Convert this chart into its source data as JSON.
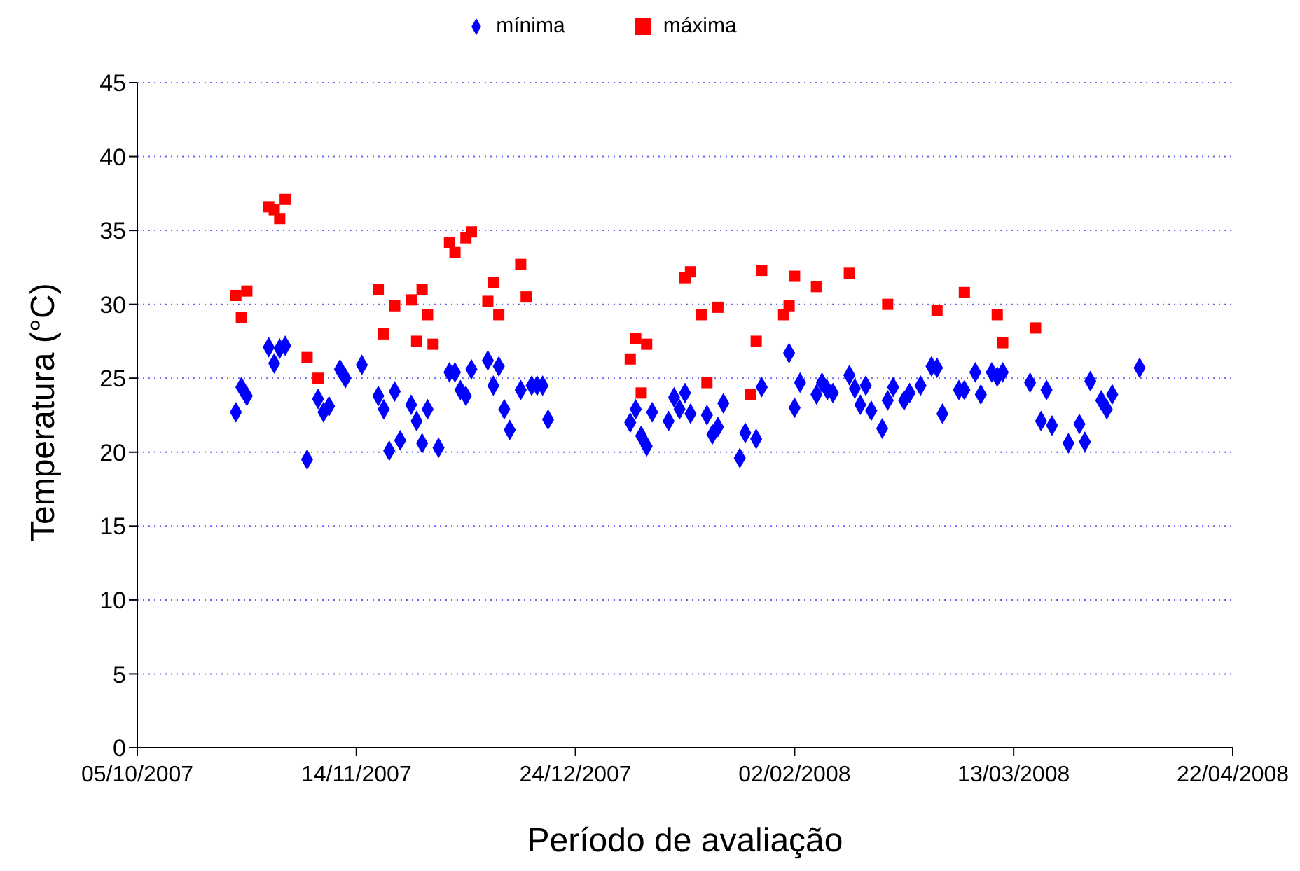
{
  "chart_data": {
    "type": "scatter",
    "xlabel": "Período de avaliação",
    "ylabel": "Temperatura (°C)",
    "xlim": [
      "2007-10-05",
      "2008-04-22"
    ],
    "xticks": [
      {
        "value": "2007-10-05",
        "label": "05/10/2007"
      },
      {
        "value": "2007-11-14",
        "label": "14/11/2007"
      },
      {
        "value": "2007-12-24",
        "label": "24/12/2007"
      },
      {
        "value": "2008-02-02",
        "label": "02/02/2008"
      },
      {
        "value": "2008-03-13",
        "label": "13/03/2008"
      },
      {
        "value": "2008-04-22",
        "label": "22/04/2008"
      }
    ],
    "ylim": [
      0,
      45
    ],
    "yticks": [
      0,
      5,
      10,
      15,
      20,
      25,
      30,
      35,
      40,
      45
    ],
    "grid": "y",
    "legend": "top",
    "series": [
      {
        "name": "mínima",
        "color": "#0000ff",
        "marker": "diamond",
        "x": [
          "2007-10-23",
          "2007-10-24",
          "2007-10-25",
          "2007-10-29",
          "2007-10-30",
          "2007-10-31",
          "2007-11-01",
          "2007-11-05",
          "2007-11-07",
          "2007-11-08",
          "2007-11-09",
          "2007-11-11",
          "2007-11-12",
          "2007-11-15",
          "2007-11-18",
          "2007-11-19",
          "2007-11-20",
          "2007-11-21",
          "2007-11-22",
          "2007-11-24",
          "2007-11-25",
          "2007-11-26",
          "2007-11-27",
          "2007-11-29",
          "2007-12-01",
          "2007-12-02",
          "2007-12-03",
          "2007-12-04",
          "2007-12-05",
          "2007-12-08",
          "2007-12-09",
          "2007-12-10",
          "2007-12-11",
          "2007-12-12",
          "2007-12-14",
          "2007-12-16",
          "2007-12-17",
          "2007-12-18",
          "2007-12-19",
          "2008-01-03",
          "2008-01-04",
          "2008-01-05",
          "2008-01-06",
          "2008-01-07",
          "2008-01-10",
          "2008-01-11",
          "2008-01-12",
          "2008-01-13",
          "2008-01-14",
          "2008-01-17",
          "2008-01-18",
          "2008-01-19",
          "2008-01-20",
          "2008-01-23",
          "2008-01-24",
          "2008-01-26",
          "2008-01-27",
          "2008-02-01",
          "2008-02-02",
          "2008-02-03",
          "2008-02-06",
          "2008-02-07",
          "2008-02-08",
          "2008-02-09",
          "2008-02-12",
          "2008-02-13",
          "2008-02-14",
          "2008-02-15",
          "2008-02-16",
          "2008-02-18",
          "2008-02-19",
          "2008-02-20",
          "2008-02-22",
          "2008-02-23",
          "2008-02-25",
          "2008-02-27",
          "2008-02-28",
          "2008-02-29",
          "2008-03-03",
          "2008-03-04",
          "2008-03-06",
          "2008-03-07",
          "2008-03-09",
          "2008-03-10",
          "2008-03-11",
          "2008-03-16",
          "2008-03-18",
          "2008-03-19",
          "2008-03-20",
          "2008-03-23",
          "2008-03-25",
          "2008-03-26",
          "2008-03-27",
          "2008-03-29",
          "2008-03-30",
          "2008-03-31",
          "2008-04-05"
        ],
        "values": [
          22.7,
          24.4,
          23.8,
          27.1,
          26.0,
          27.0,
          27.2,
          19.5,
          23.6,
          22.7,
          23.1,
          25.6,
          25.0,
          25.9,
          23.8,
          22.9,
          20.1,
          24.1,
          20.8,
          23.2,
          22.1,
          20.6,
          22.9,
          20.3,
          25.4,
          25.4,
          24.2,
          23.8,
          25.6,
          26.2,
          24.5,
          25.8,
          22.9,
          21.5,
          24.2,
          24.5,
          24.5,
          24.5,
          22.2,
          22.0,
          22.9,
          21.1,
          20.4,
          22.7,
          22.1,
          23.7,
          22.9,
          24.0,
          22.6,
          22.5,
          21.2,
          21.7,
          23.3,
          19.6,
          21.3,
          20.9,
          24.4,
          26.7,
          23.0,
          24.7,
          23.9,
          24.7,
          24.2,
          24.0,
          25.2,
          24.3,
          23.2,
          24.5,
          22.8,
          21.6,
          23.5,
          24.4,
          23.5,
          24.0,
          24.5,
          25.8,
          25.7,
          22.6,
          24.2,
          24.2,
          25.4,
          23.9,
          25.4,
          25.1,
          25.4,
          24.7,
          22.1,
          24.2,
          21.8,
          20.6,
          21.9,
          20.7,
          24.8,
          23.5,
          22.9,
          23.9,
          25.7
        ]
      },
      {
        "name": "máxima",
        "color": "#ff0000",
        "marker": "square",
        "x": [
          "2007-10-23",
          "2007-10-24",
          "2007-10-25",
          "2007-10-29",
          "2007-10-30",
          "2007-10-31",
          "2007-11-01",
          "2007-11-05",
          "2007-11-07",
          "2007-11-18",
          "2007-11-19",
          "2007-11-21",
          "2007-11-24",
          "2007-11-25",
          "2007-11-26",
          "2007-11-27",
          "2007-11-28",
          "2007-12-01",
          "2007-12-02",
          "2007-12-04",
          "2007-12-05",
          "2007-12-08",
          "2007-12-09",
          "2007-12-10",
          "2007-12-14",
          "2007-12-15",
          "2008-01-03",
          "2008-01-04",
          "2008-01-05",
          "2008-01-06",
          "2008-01-13",
          "2008-01-14",
          "2008-01-16",
          "2008-01-17",
          "2008-01-19",
          "2008-01-25",
          "2008-01-26",
          "2008-01-27",
          "2008-01-31",
          "2008-02-01",
          "2008-02-02",
          "2008-02-06",
          "2008-02-12",
          "2008-02-19",
          "2008-02-28",
          "2008-03-04",
          "2008-03-10",
          "2008-03-11",
          "2008-03-17"
        ],
        "values": [
          30.6,
          29.1,
          30.9,
          36.6,
          36.4,
          35.8,
          37.1,
          26.4,
          25.0,
          31.0,
          28.0,
          29.9,
          30.3,
          27.5,
          31.0,
          29.3,
          27.3,
          34.2,
          33.5,
          34.5,
          34.9,
          30.2,
          31.5,
          29.3,
          32.7,
          30.5,
          26.3,
          27.7,
          24.0,
          27.3,
          31.8,
          32.2,
          29.3,
          24.7,
          29.8,
          23.9,
          27.5,
          32.3,
          29.3,
          29.9,
          31.9,
          31.2,
          32.1,
          30.0,
          29.6,
          30.8,
          29.3,
          27.4,
          28.4
        ]
      }
    ]
  }
}
